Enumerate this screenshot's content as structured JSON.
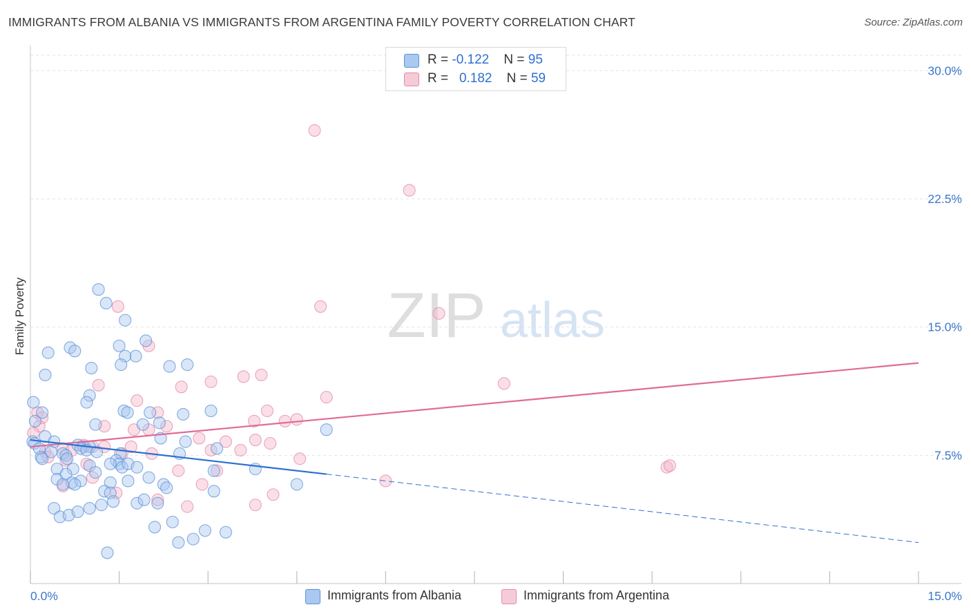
{
  "title": "IMMIGRANTS FROM ALBANIA VS IMMIGRANTS FROM ARGENTINA FAMILY POVERTY CORRELATION CHART",
  "source": "Source: ZipAtlas.com",
  "watermark": {
    "zip": "ZIP",
    "atlas": "atlas"
  },
  "legend": {
    "rows": [
      {
        "r_label": "R = ",
        "r_value": "-0.122",
        "n_label": "N = ",
        "n_value": "95",
        "color": "#aac8f0"
      },
      {
        "r_label": "R = ",
        "r_value": "0.182",
        "n_label": "N = ",
        "n_value": "59",
        "color": "#f5b7ca"
      }
    ]
  },
  "bottom_legend": {
    "albania": "Immigrants from Albania",
    "argentina": "Immigrants from Argentina"
  },
  "colors": {
    "albania_fill": "#aac8f0",
    "albania_stroke": "#5b92d8",
    "albania_line": "#2d6fd0",
    "argentina_fill": "#f5b7ca",
    "argentina_stroke": "#e58aa8",
    "argentina_line": "#e06b95",
    "tick_label": "#3d78cc"
  },
  "chart_data": {
    "type": "scatter",
    "title": "IMMIGRANTS FROM ALBANIA VS IMMIGRANTS FROM ARGENTINA FAMILY POVERTY CORRELATION CHART",
    "xlabel": "",
    "ylabel": "Family Poverty",
    "xlim": [
      0,
      15
    ],
    "ylim": [
      0,
      30
    ],
    "x_tick_labels": [
      "0.0%",
      "15.0%"
    ],
    "y_tick_labels": [
      "7.5%",
      "15.0%",
      "22.5%",
      "30.0%"
    ],
    "y_ticks": [
      7.5,
      15.0,
      22.5,
      30.0
    ],
    "grid": true,
    "legend_position": "top-center",
    "series": [
      {
        "name": "Immigrants from Albania",
        "r": -0.122,
        "n": 95,
        "trend": {
          "solid": [
            [
              0,
              8.4
            ],
            [
              5.0,
              6.4
            ]
          ],
          "dashed": [
            [
              5.0,
              6.4
            ],
            [
              15,
              2.4
            ]
          ]
        },
        "points": [
          [
            1.15,
            17.2
          ],
          [
            1.28,
            16.4
          ],
          [
            1.6,
            15.4
          ],
          [
            0.3,
            13.5
          ],
          [
            0.67,
            13.8
          ],
          [
            0.75,
            13.6
          ],
          [
            1.95,
            14.2
          ],
          [
            1.5,
            13.9
          ],
          [
            1.78,
            13.3
          ],
          [
            1.6,
            13.3
          ],
          [
            1.53,
            12.8
          ],
          [
            1.03,
            12.6
          ],
          [
            2.35,
            12.7
          ],
          [
            2.65,
            12.8
          ],
          [
            0.25,
            12.2
          ],
          [
            1.0,
            11.0
          ],
          [
            0.95,
            10.6
          ],
          [
            0.05,
            10.6
          ],
          [
            0.2,
            10.0
          ],
          [
            1.58,
            10.1
          ],
          [
            1.64,
            10.0
          ],
          [
            2.02,
            10.0
          ],
          [
            2.58,
            9.9
          ],
          [
            3.05,
            10.1
          ],
          [
            0.08,
            9.5
          ],
          [
            1.1,
            9.3
          ],
          [
            1.9,
            9.3
          ],
          [
            2.18,
            9.4
          ],
          [
            5.0,
            9.0
          ],
          [
            0.25,
            8.6
          ],
          [
            0.8,
            8.1
          ],
          [
            0.9,
            8.0
          ],
          [
            1.0,
            8.0
          ],
          [
            0.04,
            8.3
          ],
          [
            0.07,
            8.2
          ],
          [
            0.4,
            8.3
          ],
          [
            2.2,
            8.5
          ],
          [
            2.62,
            8.3
          ],
          [
            3.15,
            7.9
          ],
          [
            0.15,
            7.9
          ],
          [
            0.35,
            7.7
          ],
          [
            0.55,
            7.6
          ],
          [
            0.85,
            7.9
          ],
          [
            0.95,
            7.8
          ],
          [
            1.12,
            7.7
          ],
          [
            1.52,
            7.6
          ],
          [
            2.52,
            7.6
          ],
          [
            0.18,
            7.4
          ],
          [
            0.2,
            7.3
          ],
          [
            0.6,
            7.5
          ],
          [
            0.62,
            7.3
          ],
          [
            1.0,
            6.9
          ],
          [
            1.45,
            7.2
          ],
          [
            1.5,
            7.0
          ],
          [
            1.55,
            6.8
          ],
          [
            1.65,
            7.0
          ],
          [
            1.35,
            7.0
          ],
          [
            1.8,
            6.8
          ],
          [
            0.45,
            6.7
          ],
          [
            0.72,
            6.7
          ],
          [
            1.1,
            6.5
          ],
          [
            3.1,
            6.6
          ],
          [
            3.8,
            6.7
          ],
          [
            0.45,
            6.1
          ],
          [
            0.6,
            6.4
          ],
          [
            0.7,
            5.9
          ],
          [
            0.85,
            6.0
          ],
          [
            0.75,
            5.8
          ],
          [
            1.35,
            5.9
          ],
          [
            1.65,
            6.0
          ],
          [
            2.0,
            6.2
          ],
          [
            2.25,
            5.8
          ],
          [
            4.5,
            5.8
          ],
          [
            0.55,
            5.8
          ],
          [
            1.25,
            5.4
          ],
          [
            1.35,
            5.3
          ],
          [
            2.3,
            5.6
          ],
          [
            3.1,
            5.4
          ],
          [
            1.4,
            4.8
          ],
          [
            1.8,
            4.7
          ],
          [
            1.92,
            4.9
          ],
          [
            2.15,
            4.7
          ],
          [
            0.4,
            4.4
          ],
          [
            0.5,
            3.9
          ],
          [
            0.65,
            4.0
          ],
          [
            0.8,
            4.2
          ],
          [
            1.0,
            4.4
          ],
          [
            1.2,
            4.6
          ],
          [
            2.1,
            3.3
          ],
          [
            2.4,
            3.6
          ],
          [
            2.95,
            3.1
          ],
          [
            3.3,
            3.0
          ],
          [
            2.5,
            2.4
          ],
          [
            2.75,
            2.6
          ],
          [
            1.3,
            1.8
          ]
        ]
      },
      {
        "name": "Immigrants from Argentina",
        "r": 0.182,
        "n": 59,
        "trend": {
          "solid": [
            [
              0,
              8.0
            ],
            [
              15,
              12.9
            ]
          ]
        },
        "points": [
          [
            4.8,
            26.5
          ],
          [
            6.4,
            23.0
          ],
          [
            1.48,
            16.2
          ],
          [
            4.9,
            16.2
          ],
          [
            6.9,
            15.8
          ],
          [
            2.0,
            13.9
          ],
          [
            3.6,
            12.1
          ],
          [
            3.9,
            12.2
          ],
          [
            8.0,
            11.7
          ],
          [
            1.15,
            11.6
          ],
          [
            2.55,
            11.5
          ],
          [
            3.05,
            11.8
          ],
          [
            5.0,
            10.9
          ],
          [
            1.8,
            10.7
          ],
          [
            0.12,
            10.0
          ],
          [
            0.2,
            9.7
          ],
          [
            2.15,
            10.0
          ],
          [
            4.0,
            10.1
          ],
          [
            4.3,
            9.5
          ],
          [
            4.5,
            9.6
          ],
          [
            3.78,
            9.5
          ],
          [
            0.15,
            9.2
          ],
          [
            1.25,
            9.2
          ],
          [
            2.3,
            9.2
          ],
          [
            1.75,
            9.0
          ],
          [
            2.0,
            9.0
          ],
          [
            0.05,
            8.8
          ],
          [
            2.85,
            8.5
          ],
          [
            3.8,
            8.4
          ],
          [
            3.3,
            8.3
          ],
          [
            4.05,
            8.2
          ],
          [
            0.9,
            8.1
          ],
          [
            1.05,
            8.0
          ],
          [
            1.25,
            8.0
          ],
          [
            1.7,
            8.0
          ],
          [
            0.55,
            7.9
          ],
          [
            0.7,
            7.8
          ],
          [
            0.25,
            7.7
          ],
          [
            3.05,
            7.8
          ],
          [
            3.55,
            7.8
          ],
          [
            1.55,
            7.6
          ],
          [
            2.05,
            7.6
          ],
          [
            4.55,
            7.3
          ],
          [
            0.3,
            7.4
          ],
          [
            0.6,
            7.2
          ],
          [
            0.95,
            7.0
          ],
          [
            3.15,
            6.6
          ],
          [
            10.75,
            6.8
          ],
          [
            10.8,
            6.9
          ],
          [
            2.5,
            6.6
          ],
          [
            1.05,
            6.2
          ],
          [
            6.0,
            6.0
          ],
          [
            2.9,
            5.8
          ],
          [
            0.55,
            5.7
          ],
          [
            4.1,
            5.2
          ],
          [
            1.45,
            5.3
          ],
          [
            2.15,
            4.9
          ],
          [
            3.8,
            4.6
          ],
          [
            2.65,
            4.5
          ]
        ]
      }
    ]
  }
}
